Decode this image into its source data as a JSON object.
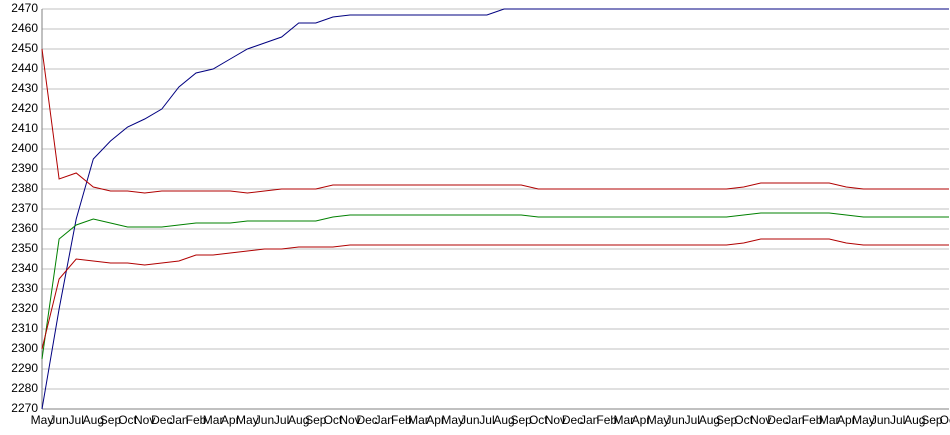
{
  "chart_data": {
    "type": "line",
    "categories": [
      "May",
      "Jun",
      "Jul",
      "Aug",
      "Sep",
      "Oct",
      "Nov",
      "Dec",
      "Jan",
      "Feb",
      "Mar",
      "Apr",
      "May",
      "Jun",
      "Jul",
      "Aug",
      "Sep",
      "Oct",
      "Nov",
      "Dec",
      "Jan",
      "Feb",
      "Mar",
      "Apr",
      "May",
      "Jun",
      "Jul",
      "Aug",
      "Sep",
      "Oct",
      "Nov",
      "Dec",
      "Jan",
      "Feb",
      "Mar",
      "Apr",
      "May",
      "Jun",
      "Jul",
      "Aug",
      "Sep",
      "Oct",
      "Nov",
      "Dec",
      "Jan",
      "Feb",
      "Mar",
      "Apr",
      "May",
      "Jun",
      "Jul",
      "Aug",
      "Sep",
      "Oct"
    ],
    "series": [
      {
        "color": "#000080",
        "values": [
          2270,
          2320,
          2365,
          2395,
          2404,
          2411,
          2415,
          2420,
          2431,
          2438,
          2440,
          2445,
          2450,
          2453,
          2456,
          2463,
          2463,
          2466,
          2467,
          2467,
          2467,
          2467,
          2467,
          2467,
          2467,
          2467,
          2467,
          2470,
          2470,
          2470,
          2470,
          2470,
          2470,
          2470,
          2470,
          2470,
          2470,
          2470,
          2470,
          2470,
          2470,
          2470,
          2470,
          2470,
          2470,
          2470,
          2470,
          2470,
          2470,
          2470,
          2470,
          2470,
          2470,
          2470
        ]
      },
      {
        "color": "#b00000",
        "values": [
          2450,
          2385,
          2388,
          2381,
          2379,
          2379,
          2378,
          2379,
          2379,
          2379,
          2379,
          2379,
          2378,
          2379,
          2380,
          2380,
          2380,
          2382,
          2382,
          2382,
          2382,
          2382,
          2382,
          2382,
          2382,
          2382,
          2382,
          2382,
          2382,
          2380,
          2380,
          2380,
          2380,
          2380,
          2380,
          2380,
          2380,
          2380,
          2380,
          2380,
          2380,
          2381,
          2383,
          2383,
          2383,
          2383,
          2383,
          2381,
          2380,
          2380,
          2380,
          2380,
          2380,
          2380
        ]
      },
      {
        "color": "#008000",
        "values": [
          2295,
          2355,
          2362,
          2365,
          2363,
          2361,
          2361,
          2361,
          2362,
          2363,
          2363,
          2363,
          2364,
          2364,
          2364,
          2364,
          2364,
          2366,
          2367,
          2367,
          2367,
          2367,
          2367,
          2367,
          2367,
          2367,
          2367,
          2367,
          2367,
          2366,
          2366,
          2366,
          2366,
          2366,
          2366,
          2366,
          2366,
          2366,
          2366,
          2366,
          2366,
          2367,
          2368,
          2368,
          2368,
          2368,
          2368,
          2367,
          2366,
          2366,
          2366,
          2366,
          2366,
          2366
        ]
      },
      {
        "color": "#b00000",
        "values": [
          2300,
          2335,
          2345,
          2344,
          2343,
          2343,
          2342,
          2343,
          2344,
          2347,
          2347,
          2348,
          2349,
          2350,
          2350,
          2351,
          2351,
          2351,
          2352,
          2352,
          2352,
          2352,
          2352,
          2352,
          2352,
          2352,
          2352,
          2352,
          2352,
          2352,
          2352,
          2352,
          2352,
          2352,
          2352,
          2352,
          2352,
          2352,
          2352,
          2352,
          2352,
          2353,
          2355,
          2355,
          2355,
          2355,
          2355,
          2353,
          2352,
          2352,
          2352,
          2352,
          2352,
          2352
        ]
      }
    ],
    "ylim": [
      2270,
      2470
    ],
    "yticks": [
      2270,
      2280,
      2290,
      2300,
      2310,
      2320,
      2330,
      2340,
      2350,
      2360,
      2370,
      2380,
      2390,
      2400,
      2410,
      2420,
      2430,
      2440,
      2450,
      2460,
      2470
    ],
    "grid": true
  }
}
